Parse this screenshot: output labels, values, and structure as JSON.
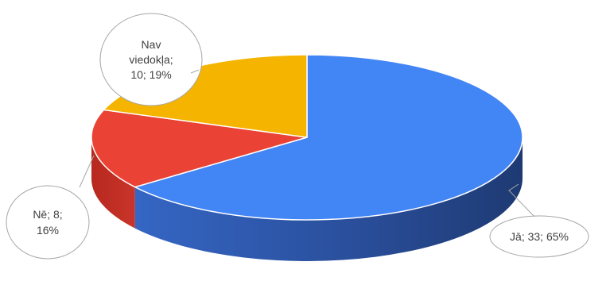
{
  "chart_data": {
    "type": "pie",
    "style": "3d",
    "title": "",
    "colors": {
      "Jā": "#4285F4",
      "Nē": "#EA4335",
      "Nav viedokļa": "#F4B400"
    },
    "slices": [
      {
        "category": "Jā",
        "value": 33,
        "percent": 65,
        "label_lines": [
          "Jā; 33; 65%"
        ]
      },
      {
        "category": "Nē",
        "value": 8,
        "percent": 16,
        "label_lines": [
          "Nē; 8;",
          "16%"
        ]
      },
      {
        "category": "Nav viedokļa",
        "value": 10,
        "percent": 19,
        "label_lines": [
          "Nav",
          "viedokļa;",
          "10; 19%"
        ]
      }
    ]
  }
}
